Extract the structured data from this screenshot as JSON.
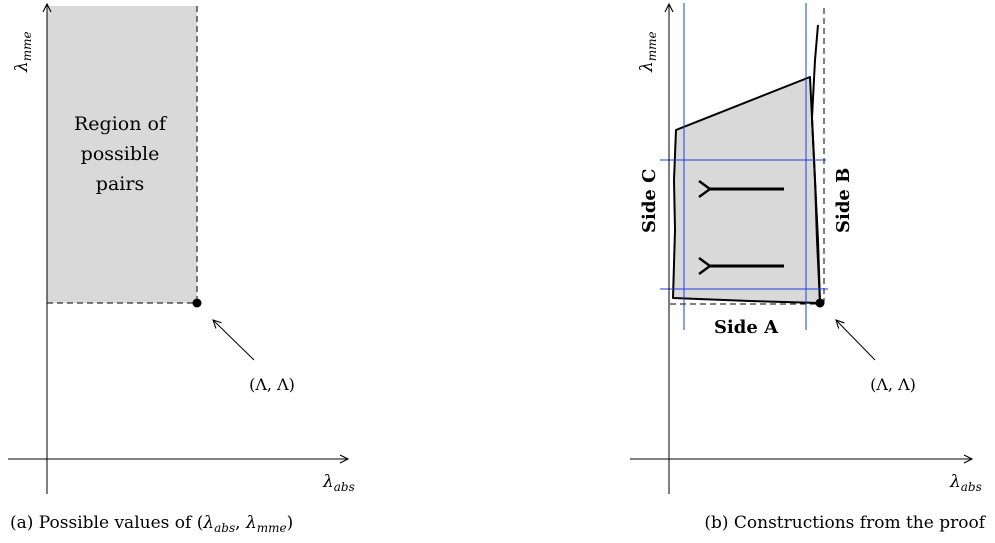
{
  "panel_a": {
    "y_axis_symbol": "λ",
    "y_axis_subscript": "mme",
    "x_axis_symbol": "λ",
    "x_axis_subscript": "abs",
    "region_label_line1": "Region of",
    "region_label_line2": "possible",
    "region_label_line3": "pairs",
    "point_label": "(Λ, Λ)",
    "caption_prefix": "(a) Possible values of (",
    "caption_symbol1": "λ",
    "caption_sub1": "abs",
    "caption_comma": ", ",
    "caption_symbol2": "λ",
    "caption_sub2": "mme",
    "caption_suffix": ")"
  },
  "panel_b": {
    "y_axis_symbol": "λ",
    "y_axis_subscript": "mme",
    "x_axis_symbol": "λ",
    "x_axis_subscript": "abs",
    "side_a": "Side A",
    "side_b": "Side B",
    "side_c": "Side C",
    "point_label": "(Λ, Λ)",
    "caption": "(b) Constructions from the proof"
  },
  "colors": {
    "region_fill": "#d9d9d9",
    "construction_line": "#1f3fe0",
    "ink": "#000000"
  }
}
